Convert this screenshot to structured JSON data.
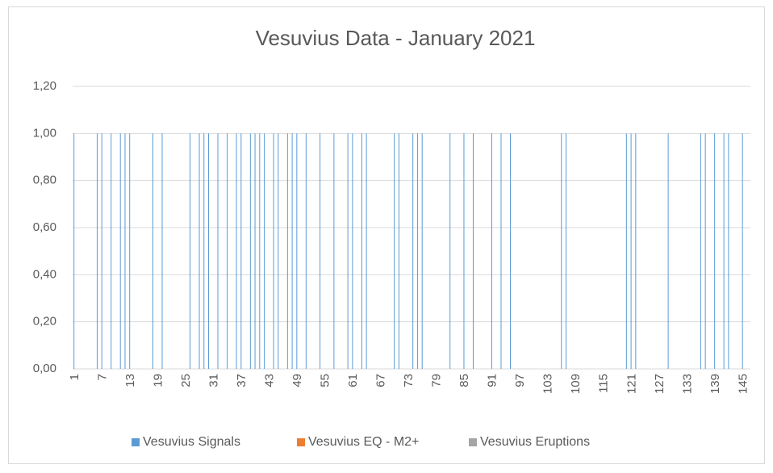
{
  "chart_data": {
    "type": "bar",
    "title": "Vesuvius Data - January 2021",
    "categories": [
      "1",
      null,
      null,
      null,
      null,
      null,
      "7",
      null,
      null,
      null,
      null,
      null,
      "13",
      null,
      null,
      null,
      null,
      null,
      "19",
      null,
      null,
      null,
      null,
      null,
      "25",
      null,
      null,
      null,
      null,
      null,
      "31",
      null,
      null,
      null,
      null,
      null,
      "37",
      null,
      null,
      null,
      null,
      null,
      "43",
      null,
      null,
      null,
      null,
      null,
      "49",
      null,
      null,
      null,
      null,
      null,
      "55",
      null,
      null,
      null,
      null,
      null,
      "61",
      null,
      null,
      null,
      null,
      null,
      "67",
      null,
      null,
      null,
      null,
      null,
      "73",
      null,
      null,
      null,
      null,
      null,
      "79",
      null,
      null,
      null,
      null,
      null,
      "85",
      null,
      null,
      null,
      null,
      null,
      "91",
      null,
      null,
      null,
      null,
      null,
      "97",
      null,
      null,
      null,
      null,
      null,
      "103",
      null,
      null,
      null,
      null,
      null,
      "109",
      null,
      null,
      null,
      null,
      null,
      "115",
      null,
      null,
      null,
      null,
      null,
      "121",
      null,
      null,
      null,
      null,
      null,
      "127",
      null,
      null,
      null,
      null,
      null,
      "133",
      null,
      null,
      null,
      null,
      null,
      "139",
      null,
      null,
      null,
      null,
      null,
      "145",
      null
    ],
    "series": [
      {
        "name": "Vesuvius Signals",
        "color": "#5b9bd5",
        "values": [
          1,
          0,
          0,
          0,
          0,
          1,
          1,
          0,
          1,
          0,
          1,
          1,
          1,
          0,
          0,
          0,
          0,
          1,
          0,
          1,
          0,
          0,
          0,
          0,
          0,
          1,
          0,
          1,
          1,
          1,
          0,
          1,
          0,
          1,
          0,
          1,
          1,
          0,
          1,
          1,
          1,
          1,
          0,
          1,
          1,
          0,
          1,
          1,
          1,
          0,
          1,
          0,
          0,
          1,
          0,
          0,
          1,
          0,
          0,
          1,
          1,
          0,
          1,
          1,
          0,
          0,
          0,
          0,
          0,
          1,
          1,
          0,
          0,
          1,
          1,
          1,
          0,
          0,
          0,
          0,
          0,
          1,
          0,
          0,
          1,
          0,
          1,
          0,
          0,
          0,
          1,
          0,
          1,
          0,
          1,
          0,
          0,
          0,
          0,
          0,
          0,
          0,
          0,
          0,
          0,
          1,
          1,
          0,
          0,
          0,
          0,
          0,
          0,
          0,
          0,
          0,
          0,
          0,
          0,
          1,
          1,
          1,
          0,
          0,
          0,
          0,
          0,
          0,
          1,
          0,
          0,
          0,
          0,
          0,
          0,
          1,
          1,
          0,
          1,
          0,
          1,
          1,
          0,
          0,
          1,
          0
        ]
      },
      {
        "name": "Vesuvius EQ - M2+",
        "color": "#ed7d31",
        "values": [
          0,
          0,
          0,
          0,
          0,
          0,
          0,
          0,
          0,
          0,
          0,
          0,
          0,
          0,
          0,
          0,
          0,
          0,
          0,
          0,
          0,
          0,
          0,
          0,
          0,
          0,
          0,
          0,
          0,
          0,
          0,
          0,
          0,
          0,
          0,
          0,
          0,
          0,
          0,
          0,
          0,
          0,
          0,
          0,
          0,
          0,
          0,
          0,
          0,
          0,
          0,
          0,
          0,
          0,
          0,
          0,
          0,
          0,
          0,
          0,
          0,
          0,
          0,
          0,
          0,
          0,
          0,
          0,
          0,
          0,
          0,
          0,
          0,
          0,
          0,
          0,
          0,
          0,
          0,
          0,
          0,
          0,
          0,
          0,
          0,
          0,
          0,
          0,
          0,
          0,
          0,
          0,
          0,
          0,
          0,
          0,
          0,
          0,
          0,
          0,
          0,
          0,
          0,
          0,
          0,
          0,
          0,
          0,
          0,
          0,
          0,
          0,
          0,
          0,
          0,
          0,
          0,
          0,
          0,
          0,
          0,
          0,
          0,
          0,
          0,
          0,
          0,
          0,
          0,
          0,
          0,
          0,
          0,
          0,
          0,
          0,
          0,
          0,
          0,
          0,
          0,
          0,
          0,
          0,
          0,
          0
        ]
      },
      {
        "name": "Vesuvius Eruptions",
        "color": "#a5a5a5",
        "values": [
          0,
          0,
          0,
          0,
          0,
          0,
          0,
          0,
          0,
          0,
          0,
          0,
          0,
          0,
          0,
          0,
          0,
          0,
          0,
          0,
          0,
          0,
          0,
          0,
          0,
          0,
          0,
          0,
          0,
          0,
          0,
          0,
          0,
          0,
          0,
          0,
          0,
          0,
          0,
          0,
          0,
          0,
          0,
          0,
          0,
          0,
          0,
          0,
          0,
          0,
          0,
          0,
          0,
          0,
          0,
          0,
          0,
          0,
          0,
          0,
          0,
          0,
          0,
          0,
          0,
          0,
          0,
          0,
          0,
          0,
          0,
          0,
          0,
          0,
          0,
          0,
          0,
          0,
          0,
          0,
          0,
          0,
          0,
          0,
          0,
          0,
          0,
          0,
          0,
          0,
          0,
          0,
          0,
          0,
          0,
          0,
          0,
          0,
          0,
          0,
          0,
          0,
          0,
          0,
          0,
          0,
          0,
          0,
          0,
          0,
          0,
          0,
          0,
          0,
          0,
          0,
          0,
          0,
          0,
          0,
          0,
          0,
          0,
          0,
          0,
          0,
          0,
          0,
          0,
          0,
          0,
          0,
          0,
          0,
          0,
          0,
          0,
          0,
          0,
          0,
          0,
          0,
          0,
          0,
          0,
          0
        ]
      }
    ],
    "ylim": [
      0,
      1.2
    ],
    "yticks": [
      {
        "value": 0,
        "label": "0,00"
      },
      {
        "value": 0.2,
        "label": "0,20"
      },
      {
        "value": 0.4,
        "label": "0,40"
      },
      {
        "value": 0.6,
        "label": "0,60"
      },
      {
        "value": 0.8,
        "label": "0,80"
      },
      {
        "value": 1,
        "label": "1,00"
      },
      {
        "value": 1.2,
        "label": "1,20"
      }
    ],
    "grid": true,
    "legend": "bottom"
  }
}
